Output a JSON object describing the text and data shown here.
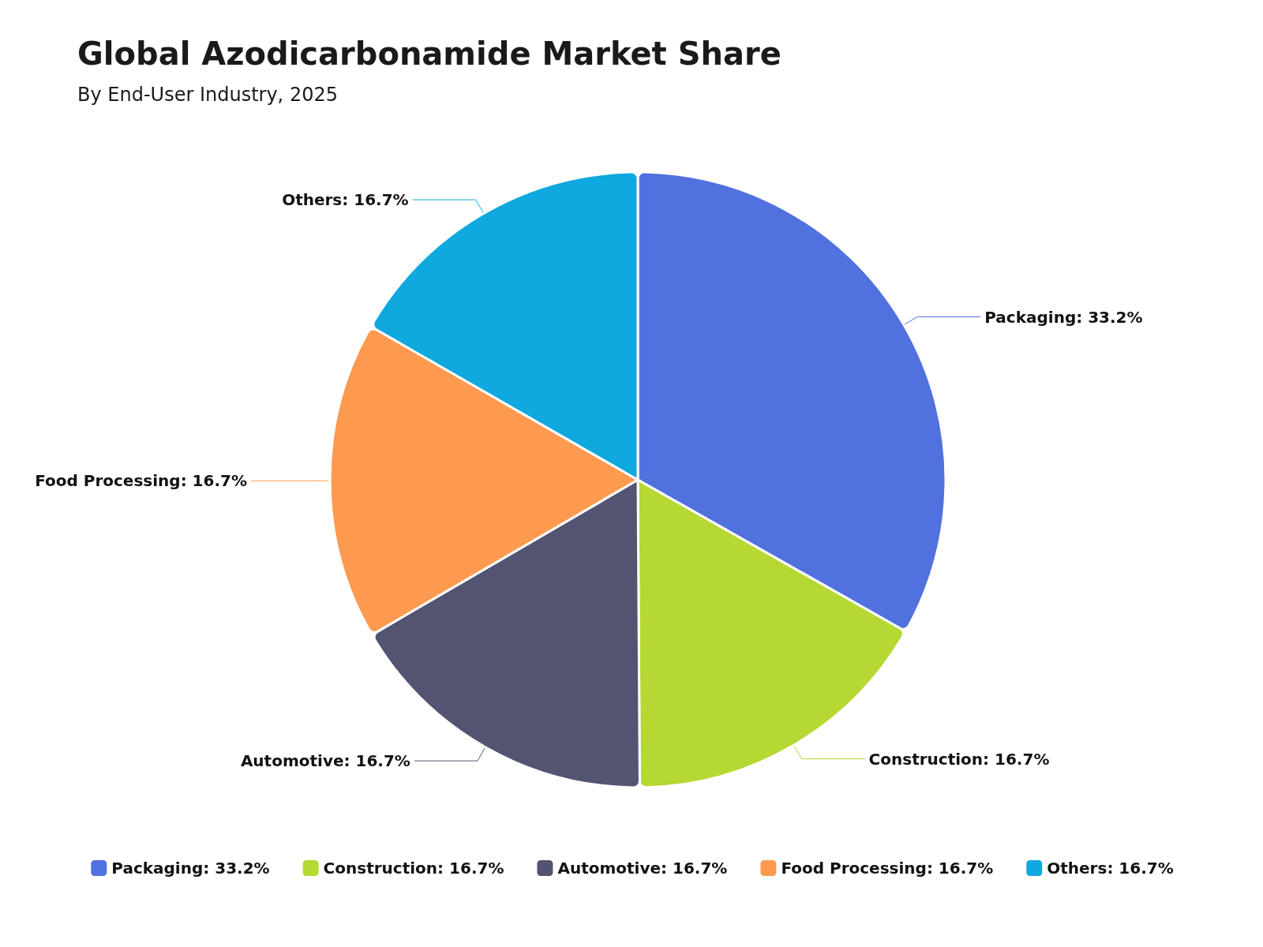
{
  "chart_data": {
    "type": "pie",
    "title": "Global Azodicarbonamide Market Share",
    "subtitle": "By End-User Industry, 2025",
    "categories": [
      "Packaging: 33.2%",
      "Construction: 16.7%",
      "Automotive: 16.7%",
      "Food Processing: 16.7%",
      "Others: 16.7%"
    ],
    "values": [
      33.2,
      16.7,
      16.7,
      16.7,
      16.7
    ],
    "colors": [
      "#5171de",
      "#b5d833",
      "#525472",
      "#fe9a4f",
      "#0fa8df"
    ],
    "legend": "bottom"
  }
}
